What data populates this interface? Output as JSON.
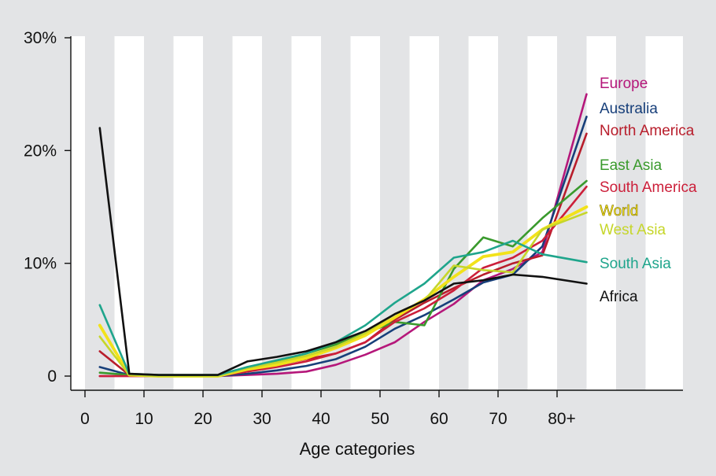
{
  "chart_data": {
    "type": "line",
    "title": "",
    "xlabel": "Age categories",
    "ylabel": "",
    "x_ticks": [
      "0",
      "10",
      "20",
      "30",
      "40",
      "50",
      "60",
      "70",
      "80+"
    ],
    "y_ticks": [
      "0",
      "10%",
      "20%",
      "30%"
    ],
    "ylim": [
      0,
      30
    ],
    "x": [
      2.5,
      7.5,
      12.5,
      17.5,
      22.5,
      27.5,
      32.5,
      37.5,
      42.5,
      47.5,
      52.5,
      57.5,
      62.5,
      67.5,
      72.5,
      77.5,
      85
    ],
    "grid": "alternating vertical shaded bands",
    "legend": "right, labels beside line ends",
    "series": [
      {
        "name": "Europe",
        "color": "#b5177a",
        "values": [
          0.0,
          0.0,
          0.0,
          0.0,
          0.0,
          0.1,
          0.2,
          0.4,
          1.0,
          1.9,
          3.0,
          4.8,
          6.4,
          8.5,
          9.5,
          11.0,
          25.0
        ]
      },
      {
        "name": "Australia",
        "color": "#173f7a",
        "values": [
          0.8,
          0.1,
          0.0,
          0.0,
          0.0,
          0.2,
          0.5,
          0.9,
          1.5,
          2.6,
          4.2,
          5.4,
          6.8,
          8.3,
          9.0,
          11.5,
          23.0
        ]
      },
      {
        "name": "North America",
        "color": "#b81d2b",
        "values": [
          2.2,
          0.1,
          0.0,
          0.0,
          0.0,
          0.5,
          1.0,
          1.5,
          2.0,
          3.0,
          5.0,
          6.5,
          7.8,
          9.0,
          10.0,
          10.7,
          21.5
        ]
      },
      {
        "name": "East Asia",
        "color": "#3a9a2d",
        "values": [
          0.3,
          0.1,
          0.0,
          0.0,
          0.0,
          0.8,
          1.3,
          2.0,
          2.8,
          3.8,
          4.8,
          4.5,
          9.5,
          12.3,
          11.5,
          14.0,
          17.3
        ]
      },
      {
        "name": "South America",
        "color": "#cc1f3a",
        "values": [
          0.0,
          0.0,
          0.0,
          0.0,
          0.0,
          0.4,
          0.8,
          1.3,
          2.0,
          3.0,
          4.8,
          6.0,
          7.6,
          9.6,
          10.5,
          12.0,
          16.8
        ]
      },
      {
        "name": "World",
        "color": "#f2e21a",
        "values": [
          4.5,
          0.1,
          0.0,
          0.0,
          0.0,
          0.6,
          1.0,
          1.6,
          2.5,
          3.6,
          5.2,
          6.8,
          8.8,
          10.6,
          11.0,
          13.0,
          15.0
        ]
      },
      {
        "name": "West Asia",
        "color": "#c6d62a",
        "values": [
          3.5,
          0.1,
          0.0,
          0.0,
          0.0,
          0.7,
          1.2,
          1.8,
          2.6,
          3.8,
          5.5,
          6.7,
          9.8,
          9.4,
          9.2,
          13.0,
          14.5
        ]
      },
      {
        "name": "South Asia",
        "color": "#1fa58c",
        "values": [
          6.3,
          0.2,
          0.1,
          0.1,
          0.1,
          0.8,
          1.4,
          2.0,
          3.0,
          4.5,
          6.5,
          8.2,
          10.5,
          11.0,
          12.0,
          10.8,
          10.1
        ]
      },
      {
        "name": "Africa",
        "color": "#111111",
        "values": [
          22.0,
          0.2,
          0.1,
          0.1,
          0.1,
          1.3,
          1.7,
          2.2,
          3.0,
          4.0,
          5.5,
          6.7,
          8.2,
          8.5,
          9.0,
          8.8,
          8.2
        ]
      }
    ]
  }
}
